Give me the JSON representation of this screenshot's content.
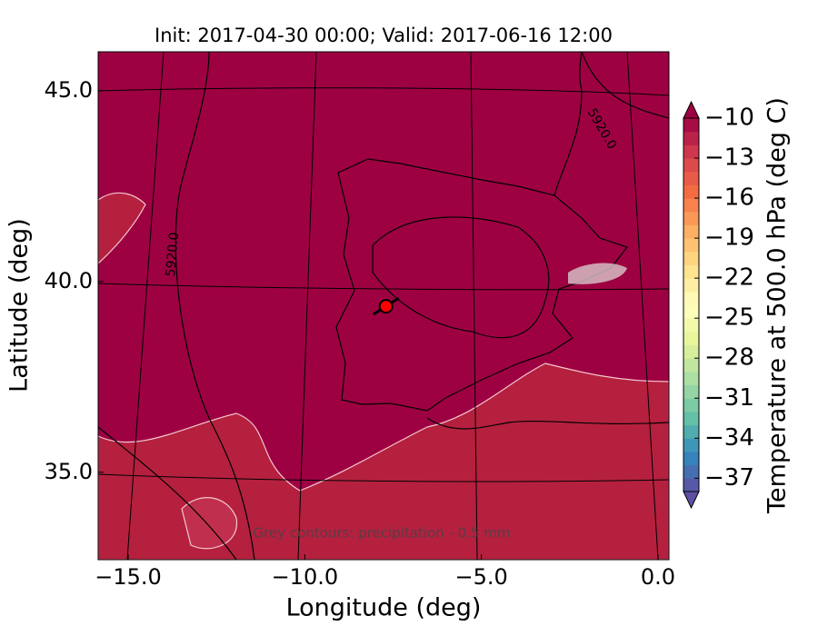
{
  "chart_data": {
    "type": "map",
    "title": "Init: 2017-04-30 00:00; Valid: 2017-06-16 12:00",
    "xlabel": "Longitude (deg)",
    "ylabel": "Latitude (deg)",
    "xlim": [
      -15.85,
      0.31
    ],
    "ylim": [
      32.71,
      46.02
    ],
    "xticks": [
      {
        "value": -15,
        "label": "−15.0"
      },
      {
        "value": -10,
        "label": "−10.0"
      },
      {
        "value": -5,
        "label": "−5.0"
      },
      {
        "value": 0,
        "label": "0.0"
      }
    ],
    "yticks": [
      {
        "value": 35,
        "label": "35.0"
      },
      {
        "value": 40,
        "label": "40.0"
      },
      {
        "value": 45,
        "label": "45.0"
      }
    ],
    "background_color": "#9e0142",
    "point": {
      "x": -7.7,
      "y": 39.35,
      "color": "#ff0000"
    },
    "contour_labels": [
      "5920.0",
      "5920.0"
    ],
    "note": "Grey contours: precipitation - 0.5 mm",
    "colorbar": {
      "label": "Temperature at 500.0 hPa (deg C)",
      "clim": [
        -38,
        -10
      ],
      "ticks": [
        {
          "value": -10,
          "label": "−10"
        },
        {
          "value": -13,
          "label": "−13"
        },
        {
          "value": -16,
          "label": "−16"
        },
        {
          "value": -19,
          "label": "−19"
        },
        {
          "value": -22,
          "label": "−22"
        },
        {
          "value": -25,
          "label": "−25"
        },
        {
          "value": -28,
          "label": "−28"
        },
        {
          "value": -31,
          "label": "−31"
        },
        {
          "value": -34,
          "label": "−34"
        },
        {
          "value": -37,
          "label": "−37"
        }
      ],
      "cmap": [
        "#5e4fa2",
        "#3288bd",
        "#66c2a5",
        "#abdda4",
        "#e6f598",
        "#ffffbf",
        "#fee08b",
        "#fdae61",
        "#f46d43",
        "#d53e4f",
        "#9e0142"
      ]
    }
  }
}
